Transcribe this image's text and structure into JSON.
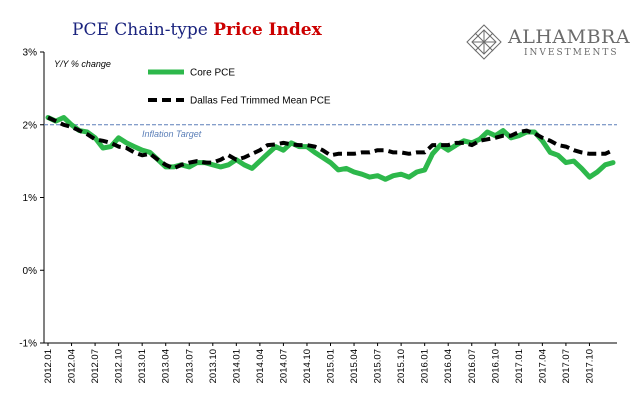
{
  "header": {
    "title_part1": "PCE Chain-type ",
    "title_part2": "Price Index",
    "logo_name": "ALHAMBRA",
    "logo_sub": "INVESTMENTS"
  },
  "colors": {
    "title_navy": "#1a237e",
    "title_red": "#cc0000",
    "core_pce": "#2db84b",
    "trimmed_mean": "#000000",
    "target_line": "#5b7fb8",
    "logo_gray": "#6b6b6b"
  },
  "chart_data": {
    "type": "line",
    "title": "PCE Chain-type Price Index",
    "ylabel": "Y/Y % change",
    "ylim": [
      -1,
      3
    ],
    "y_ticks": [
      "3%",
      "2%",
      "1%",
      "0%",
      "-1%"
    ],
    "y_tick_values": [
      3,
      2,
      1,
      0,
      -1
    ],
    "grid": false,
    "legend_position": "top-left",
    "x_labels": [
      "2012.01",
      "2012.04",
      "2012.07",
      "2012.10",
      "2013.01",
      "2013.04",
      "2013.07",
      "2013.10",
      "2014.01",
      "2014.04",
      "2014.07",
      "2014.10",
      "2015.01",
      "2015.04",
      "2015.07",
      "2015.10",
      "2016.01",
      "2016.04",
      "2016.07",
      "2016.10",
      "2017.01",
      "2017.04",
      "2017.07",
      "2017.10"
    ],
    "reference_line": {
      "value": 2.0,
      "label": "Inflation Target"
    },
    "series": [
      {
        "name": "Core PCE",
        "style": "solid",
        "values": [
          2.1,
          2.05,
          2.1,
          2.0,
          1.92,
          1.9,
          1.82,
          1.68,
          1.7,
          1.82,
          1.75,
          1.7,
          1.65,
          1.62,
          1.52,
          1.42,
          1.42,
          1.45,
          1.42,
          1.48,
          1.48,
          1.45,
          1.42,
          1.45,
          1.52,
          1.45,
          1.4,
          1.5,
          1.6,
          1.7,
          1.65,
          1.75,
          1.7,
          1.7,
          1.62,
          1.55,
          1.48,
          1.38,
          1.4,
          1.35,
          1.32,
          1.28,
          1.3,
          1.25,
          1.3,
          1.32,
          1.28,
          1.35,
          1.38,
          1.6,
          1.72,
          1.65,
          1.72,
          1.78,
          1.75,
          1.8,
          1.9,
          1.85,
          1.92,
          1.82,
          1.85,
          1.9,
          1.9,
          1.78,
          1.62,
          1.58,
          1.48,
          1.5,
          1.4,
          1.28,
          1.35,
          1.45,
          1.48
        ]
      },
      {
        "name": "Dallas Fed Trimmed Mean PCE",
        "style": "dashed",
        "values": [
          2.1,
          2.05,
          2.0,
          1.97,
          1.92,
          1.87,
          1.8,
          1.78,
          1.75,
          1.7,
          1.68,
          1.62,
          1.58,
          1.6,
          1.52,
          1.45,
          1.4,
          1.45,
          1.48,
          1.5,
          1.48,
          1.48,
          1.52,
          1.58,
          1.52,
          1.55,
          1.6,
          1.65,
          1.72,
          1.73,
          1.75,
          1.73,
          1.72,
          1.72,
          1.7,
          1.65,
          1.58,
          1.6,
          1.6,
          1.6,
          1.62,
          1.62,
          1.65,
          1.65,
          1.62,
          1.62,
          1.6,
          1.62,
          1.62,
          1.72,
          1.72,
          1.72,
          1.75,
          1.75,
          1.72,
          1.78,
          1.8,
          1.82,
          1.85,
          1.85,
          1.9,
          1.92,
          1.88,
          1.82,
          1.78,
          1.72,
          1.7,
          1.65,
          1.62,
          1.6,
          1.6,
          1.6,
          1.65
        ]
      }
    ]
  }
}
